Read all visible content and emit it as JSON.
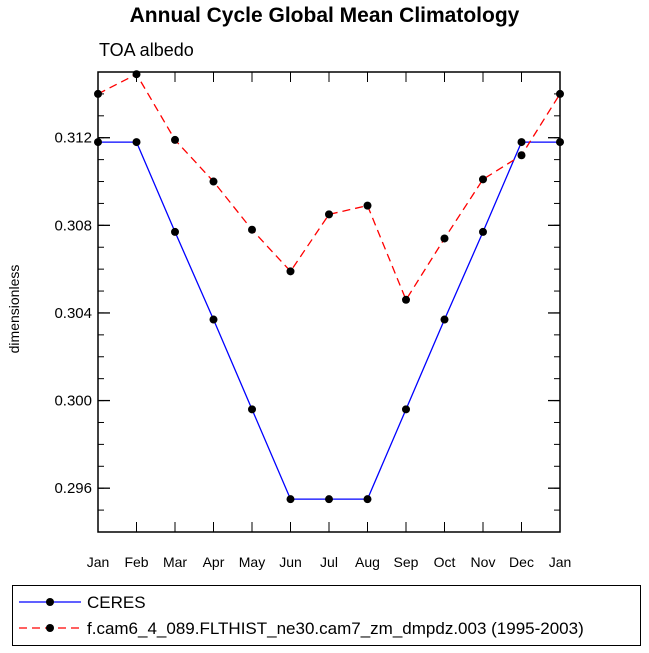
{
  "chart_data": {
    "type": "line",
    "title": "Annual Cycle Global Mean Climatology",
    "subtitle": "TOA albedo",
    "ylabel": "dimensionless",
    "xlabel": "",
    "categories": [
      "Jan",
      "Feb",
      "Mar",
      "Apr",
      "May",
      "Jun",
      "Jul",
      "Aug",
      "Sep",
      "Oct",
      "Nov",
      "Dec",
      "Jan"
    ],
    "ylim": [
      0.294,
      0.315
    ],
    "yticks": [
      0.296,
      0.3,
      0.304,
      0.308,
      0.312
    ],
    "ytick_labels": [
      "0.296",
      "0.300",
      "0.304",
      "0.308",
      "0.312"
    ],
    "series": [
      {
        "name": "CERES",
        "color": "#0000ff",
        "dash": "solid",
        "values": [
          0.3118,
          0.3118,
          0.3077,
          0.3037,
          0.2996,
          0.2955,
          0.2955,
          0.2955,
          0.2996,
          0.3037,
          0.3077,
          0.3118,
          0.3118
        ]
      },
      {
        "name": "f.cam6_4_089.FLTHIST_ne30.cam7_zm_dmpdz.003 (1995-2003)",
        "color": "#ff0000",
        "dash": "dashed",
        "values": [
          0.314,
          0.3149,
          0.3119,
          0.31,
          0.3078,
          0.3059,
          0.3085,
          0.3089,
          0.3046,
          0.3074,
          0.3101,
          0.3112,
          0.314
        ]
      }
    ],
    "legend_position": "bottom"
  }
}
